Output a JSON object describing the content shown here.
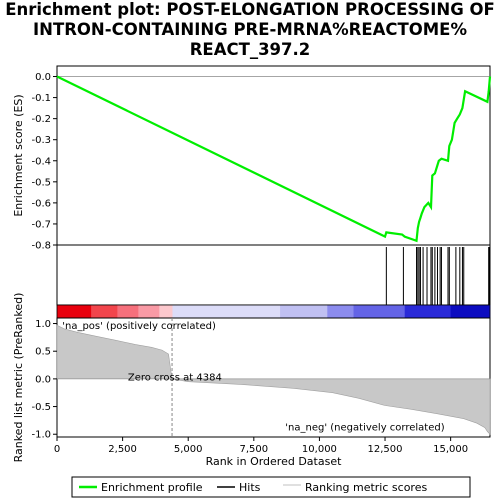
{
  "chart_data": {
    "type": "line",
    "title_lines": [
      "Enrichment plot: POST-ELONGATION PROCESSING OF",
      "INTRON-CONTAINING PRE-MRNA%REACTOME%",
      "REACT_397.2"
    ],
    "xlabel": "Rank in Ordered Dataset",
    "ylabel_top": "Enrichment score (ES)",
    "ylabel_bottom": "Ranked list metric (PreRanked)",
    "xlim": [
      0,
      16500
    ],
    "x_ticks": [
      0,
      2500,
      5000,
      7500,
      10000,
      12500,
      15000
    ],
    "x_tick_labels": [
      "0",
      "2,500",
      "5,000",
      "7,500",
      "10,000",
      "12,500",
      "15,000"
    ],
    "es_ylim": [
      -0.8,
      0.05
    ],
    "es_ticks": [
      0.0,
      -0.1,
      -0.2,
      -0.3,
      -0.4,
      -0.5,
      -0.6,
      -0.7,
      -0.8
    ],
    "es_tick_labels": [
      "0.0",
      "-0.1",
      "-0.2",
      "-0.3",
      "-0.4",
      "-0.5",
      "-0.6",
      "-0.7",
      "-0.8"
    ],
    "metric_ylim": [
      -1.05,
      1.1
    ],
    "metric_ticks": [
      1.0,
      0.5,
      0.0,
      -0.5,
      -1.0
    ],
    "metric_tick_labels": [
      "1.0",
      "0.5",
      "0.0",
      "-0.5",
      "-1.0"
    ],
    "series": [
      {
        "name": "Enrichment profile",
        "color": "#00ee00",
        "x": [
          0,
          12500,
          12550,
          13150,
          13250,
          13700,
          13750,
          13800,
          13850,
          13900,
          14000,
          14150,
          14250,
          14300,
          14400,
          14500,
          14550,
          14650,
          14900,
          14950,
          15050,
          15150,
          15250,
          15350,
          15450,
          15550,
          16400,
          16450,
          16500
        ],
        "y": [
          0.0,
          -0.76,
          -0.74,
          -0.75,
          -0.76,
          -0.78,
          -0.72,
          -0.69,
          -0.67,
          -0.65,
          -0.62,
          -0.6,
          -0.62,
          -0.47,
          -0.46,
          -0.42,
          -0.4,
          -0.39,
          -0.4,
          -0.33,
          -0.3,
          -0.22,
          -0.2,
          -0.18,
          -0.15,
          -0.07,
          -0.12,
          -0.07,
          0.0
        ]
      }
    ],
    "hits": [
      12550,
      13200,
      13700,
      13750,
      13800,
      13850,
      13950,
      14100,
      14250,
      14300,
      14400,
      14500,
      14600,
      14650,
      14900,
      14950,
      15200,
      15350,
      15450,
      15500,
      16450,
      16480
    ],
    "metric_curve": {
      "x": [
        0,
        300,
        800,
        1500,
        2200,
        3000,
        3600,
        4000,
        4250,
        4384,
        5000,
        7000,
        9000,
        10500,
        11500,
        12500,
        13500,
        14500,
        15500,
        16000,
        16300,
        16400,
        16500
      ],
      "y": [
        0.97,
        0.9,
        0.84,
        0.77,
        0.7,
        0.62,
        0.57,
        0.52,
        0.45,
        0.0,
        -0.05,
        -0.1,
        -0.17,
        -0.25,
        -0.35,
        -0.48,
        -0.55,
        -0.63,
        -0.72,
        -0.8,
        -0.88,
        -0.95,
        -1.0
      ]
    },
    "zero_cross_rank": 4384,
    "annotations": {
      "zero_cross": "Zero cross at 4384",
      "pos_label": "'na_pos' (positively correlated)",
      "neg_label": "'na_neg' (negatively correlated)"
    },
    "heat_colors": [
      "#e8000d",
      "#f2454c",
      "#f6707c",
      "#f99aa5",
      "#fcc8cd",
      "#dcdcf8",
      "#c0c0f2",
      "#8c8cee",
      "#6464e6",
      "#2a2ad8",
      "#0c0cc0"
    ],
    "legend": [
      "Enrichment profile",
      "Hits",
      "Ranking metric scores"
    ],
    "grid": false,
    "legend_position": "bottom"
  }
}
